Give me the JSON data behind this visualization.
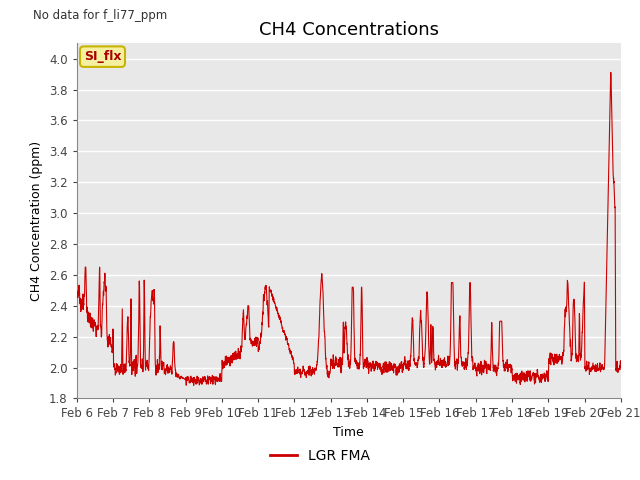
{
  "title": "CH4 Concentrations",
  "xlabel": "Time",
  "ylabel": "CH4 Concentration (ppm)",
  "top_left_text": "No data for f_li77_ppm",
  "annotation_text": "SI_flx",
  "legend_label": "LGR FMA",
  "line_color": "#cc0000",
  "ylim": [
    1.8,
    4.1
  ],
  "yticks": [
    1.8,
    2.0,
    2.2,
    2.4,
    2.6,
    2.8,
    3.0,
    3.2,
    3.4,
    3.6,
    3.8,
    4.0
  ],
  "xtick_labels": [
    "Feb 6",
    "Feb 7",
    "Feb 8",
    "Feb 9",
    "Feb 10",
    "Feb 11",
    "Feb 12",
    "Feb 13",
    "Feb 14",
    "Feb 15",
    "Feb 16",
    "Feb 17",
    "Feb 18",
    "Feb 19",
    "Feb 20",
    "Feb 21"
  ],
  "plot_bg_color": "#e8e8e8",
  "fig_bg_color": "#ffffff",
  "grid_color": "#ffffff",
  "annotation_bg": "#f5f0a0",
  "annotation_border": "#c8b400",
  "annotation_text_color": "#aa0000",
  "title_fontsize": 13,
  "label_fontsize": 9,
  "tick_fontsize": 8.5
}
